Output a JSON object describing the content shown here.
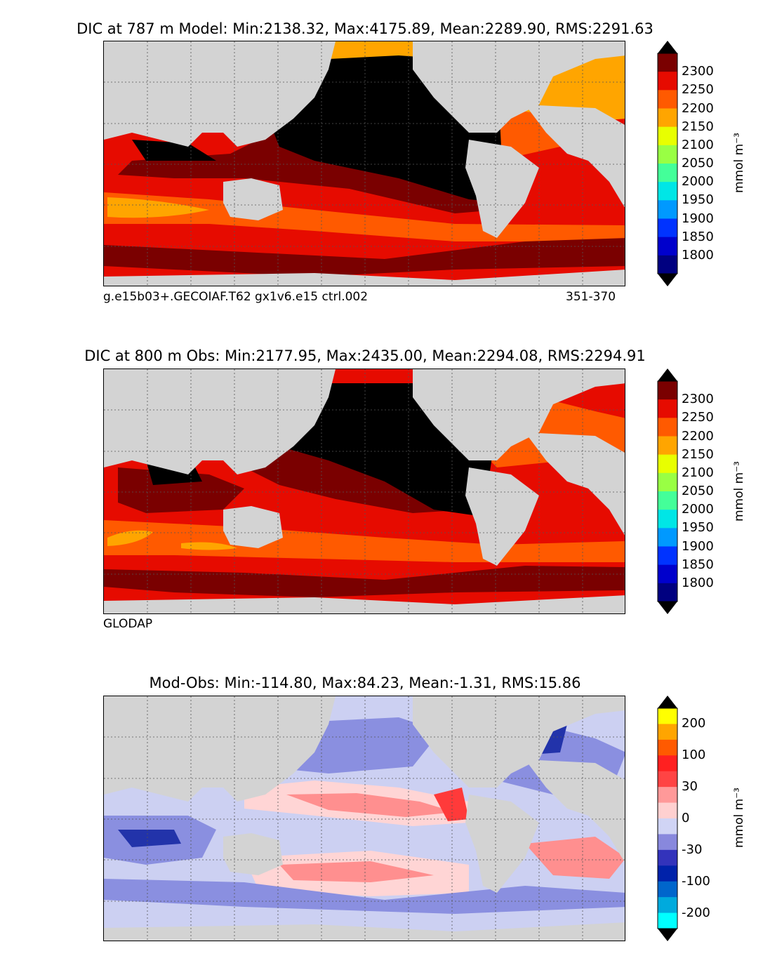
{
  "panels": [
    {
      "title": "DIC at 787 m Model: Min:2138.32, Max:4175.89, Mean:2289.90, RMS:2291.63",
      "caption_left": "g.e15b03+.GECOIAF.T62 gx1v6.e15 ctrl.002",
      "caption_right": "351-370",
      "unit": "mmol m⁻³",
      "colorbar": {
        "labels": [
          "2300",
          "2250",
          "2200",
          "2150",
          "2100",
          "2050",
          "2000",
          "1950",
          "1900",
          "1850",
          "1800"
        ],
        "colors": [
          "#7a0000",
          "#e60b00",
          "#ff5a00",
          "#ffa500",
          "#e8ff00",
          "#99ff44",
          "#44ff99",
          "#00e6e6",
          "#0099ff",
          "#0033ff",
          "#0000cc",
          "#000080"
        ],
        "extend_top": "#000000",
        "extend_bottom": "#000000"
      }
    },
    {
      "title": "DIC at 800 m Obs: Min:2177.95, Max:2435.00, Mean:2294.08, RMS:2294.91",
      "caption_left": "GLODAP",
      "caption_right": "",
      "unit": "mmol m⁻³",
      "colorbar": {
        "labels": [
          "2300",
          "2250",
          "2200",
          "2150",
          "2100",
          "2050",
          "2000",
          "1950",
          "1900",
          "1850",
          "1800"
        ],
        "colors": [
          "#7a0000",
          "#e60b00",
          "#ff5a00",
          "#ffa500",
          "#e8ff00",
          "#99ff44",
          "#44ff99",
          "#00e6e6",
          "#0099ff",
          "#0033ff",
          "#0000cc",
          "#000080"
        ],
        "extend_top": "#000000",
        "extend_bottom": "#000000"
      }
    },
    {
      "title": "Mod-Obs: Min:-114.80, Max:84.23, Mean:-1.31, RMS:15.86",
      "caption_left": "",
      "caption_right": "",
      "unit": "mmol m⁻³",
      "colorbar": {
        "labels": [
          "200",
          "100",
          "30",
          "0",
          "-30",
          "-100",
          "-200"
        ],
        "colors": [
          "#ffff00",
          "#ffa500",
          "#ff5a00",
          "#ff2020",
          "#ff4444",
          "#ff9999",
          "#ffd0d0",
          "#d0d4f5",
          "#8888dd",
          "#3333bb",
          "#0022aa",
          "#0066cc",
          "#00aadd",
          "#00ffff"
        ],
        "extend_top": "#000000",
        "extend_bottom": "#000000"
      }
    }
  ],
  "colors": {
    "land": "#d3d3d3",
    "black_core": "#000000",
    "dark_red": "#7a0000",
    "red": "#e60b00",
    "orange": "#ff5a00",
    "amber": "#ffa500",
    "diff_blue_dark": "#2233aa",
    "diff_blue": "#8a8fe0",
    "diff_blue_light": "#ccd0f2",
    "diff_pink_light": "#ffd5d5",
    "diff_pink": "#ff8f8f",
    "diff_red": "#ff3a3a"
  }
}
